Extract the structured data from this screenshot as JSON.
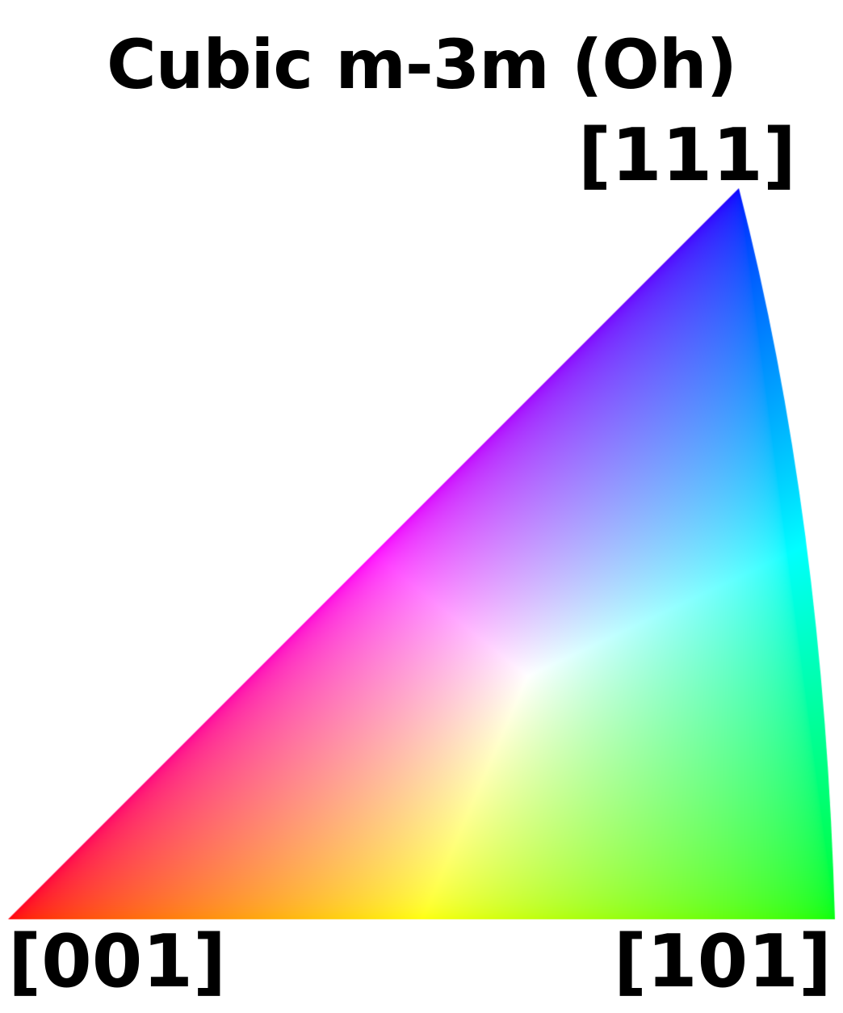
{
  "title": "Cubic m-3m (Oh)",
  "poles": {
    "corner_111": "[111]",
    "corner_001": "[001]",
    "corner_101": "[101]"
  },
  "colors": {
    "corner_001": "#ff0000",
    "corner_101": "#00ff00",
    "corner_111": "#0000ff",
    "center": "#ffffff",
    "text": "#000000",
    "background": "#ffffff"
  }
}
